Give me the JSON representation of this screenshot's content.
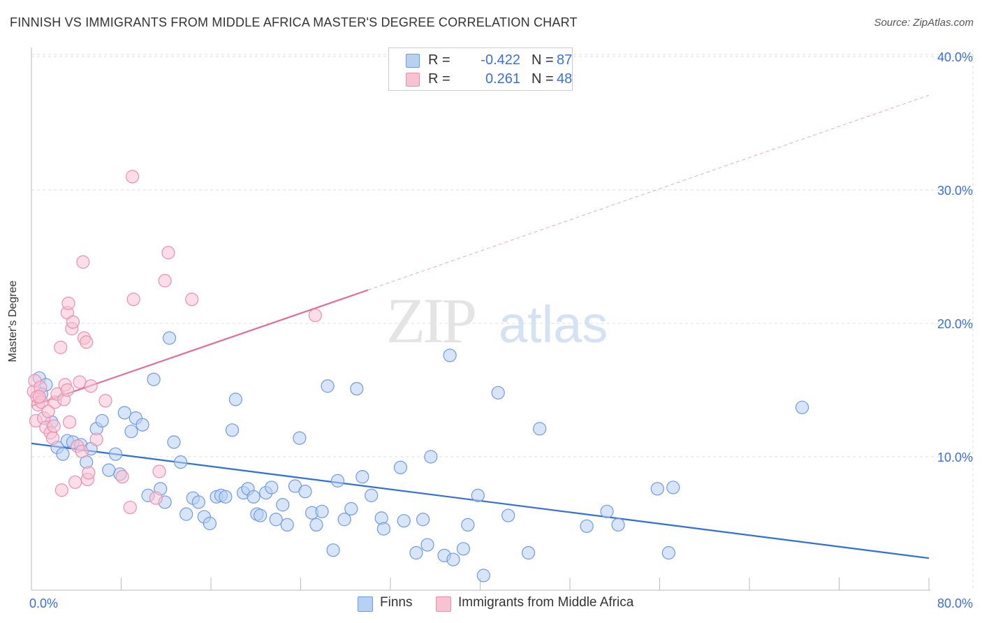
{
  "header": {
    "title": "FINNISH VS IMMIGRANTS FROM MIDDLE AFRICA MASTER'S DEGREE CORRELATION CHART",
    "source": "Source: ZipAtlas.com"
  },
  "watermark": {
    "zip": "ZIP",
    "atlas": "atlas"
  },
  "legend_top": {
    "rows": [
      {
        "r_label": "R =",
        "r_value": "-0.422",
        "n_label": "N =",
        "n_value": "87"
      },
      {
        "r_label": "R =",
        "r_value": "0.261",
        "n_label": "N =",
        "n_value": "48"
      }
    ]
  },
  "colors": {
    "finns_fill": "#b8d0f2",
    "finns_stroke": "#6f9be0",
    "finns_line": "#2f6fd6",
    "africa_fill": "#f7c3d3",
    "africa_stroke": "#ec8fae",
    "africa_line": "#e06f98",
    "axis_label": "#3a6fd8",
    "grid": "#dddddd"
  },
  "chart_data": {
    "type": "scatter",
    "title": "FINNISH VS IMMIGRANTS FROM MIDDLE AFRICA MASTER'S DEGREE CORRELATION CHART",
    "xlabel": "",
    "ylabel": "Master's Degree",
    "xlim": [
      0,
      80
    ],
    "ylim": [
      0,
      42
    ],
    "x_tick_labels": [
      "0.0%",
      "80.0%"
    ],
    "y_ticks": [
      10,
      20,
      30,
      40
    ],
    "y_tick_labels": [
      "10.0%",
      "20.0%",
      "30.0%",
      "40.0%"
    ],
    "grid": true,
    "legend_position": "top-center",
    "series": [
      {
        "name": "Finns",
        "r": -0.422,
        "n": 87,
        "trend": {
          "x": [
            0,
            80
          ],
          "y": [
            11.0,
            2.4
          ]
        },
        "points": [
          [
            0.7,
            15.9
          ],
          [
            1.3,
            15.4
          ],
          [
            0.9,
            14.7
          ],
          [
            1.8,
            12.6
          ],
          [
            2.3,
            10.7
          ],
          [
            2.8,
            10.2
          ],
          [
            3.2,
            11.2
          ],
          [
            3.7,
            11.1
          ],
          [
            4.4,
            10.9
          ],
          [
            4.9,
            9.6
          ],
          [
            5.3,
            10.6
          ],
          [
            5.8,
            12.1
          ],
          [
            6.3,
            12.7
          ],
          [
            6.9,
            9.0
          ],
          [
            7.5,
            10.2
          ],
          [
            7.9,
            8.7
          ],
          [
            8.3,
            13.3
          ],
          [
            8.9,
            11.9
          ],
          [
            9.3,
            12.9
          ],
          [
            9.9,
            12.4
          ],
          [
            10.4,
            7.1
          ],
          [
            10.9,
            15.8
          ],
          [
            11.5,
            7.6
          ],
          [
            11.9,
            6.6
          ],
          [
            12.3,
            18.9
          ],
          [
            12.7,
            11.1
          ],
          [
            13.3,
            9.6
          ],
          [
            13.8,
            5.7
          ],
          [
            14.4,
            6.9
          ],
          [
            14.9,
            6.6
          ],
          [
            15.4,
            5.5
          ],
          [
            15.9,
            5.0
          ],
          [
            16.5,
            7.0
          ],
          [
            16.9,
            7.1
          ],
          [
            17.3,
            7.0
          ],
          [
            17.9,
            12.0
          ],
          [
            18.2,
            14.3
          ],
          [
            18.9,
            7.3
          ],
          [
            19.3,
            7.6
          ],
          [
            19.8,
            7.0
          ],
          [
            20.1,
            5.7
          ],
          [
            20.4,
            5.6
          ],
          [
            20.9,
            7.3
          ],
          [
            21.4,
            7.7
          ],
          [
            21.8,
            5.3
          ],
          [
            22.4,
            6.4
          ],
          [
            22.8,
            4.9
          ],
          [
            23.5,
            7.8
          ],
          [
            23.9,
            11.4
          ],
          [
            24.4,
            7.4
          ],
          [
            25.0,
            5.8
          ],
          [
            25.4,
            4.9
          ],
          [
            25.9,
            5.9
          ],
          [
            26.4,
            15.3
          ],
          [
            26.9,
            3.0
          ],
          [
            27.3,
            8.2
          ],
          [
            27.9,
            5.3
          ],
          [
            28.5,
            6.1
          ],
          [
            29.0,
            15.1
          ],
          [
            29.5,
            8.5
          ],
          [
            30.3,
            7.1
          ],
          [
            31.2,
            5.4
          ],
          [
            31.4,
            4.6
          ],
          [
            32.9,
            9.2
          ],
          [
            33.2,
            5.2
          ],
          [
            34.3,
            2.8
          ],
          [
            34.9,
            5.3
          ],
          [
            35.3,
            3.4
          ],
          [
            35.6,
            10.0
          ],
          [
            36.8,
            2.6
          ],
          [
            37.6,
            2.3
          ],
          [
            37.3,
            17.6
          ],
          [
            38.5,
            3.1
          ],
          [
            38.9,
            4.9
          ],
          [
            39.8,
            7.1
          ],
          [
            40.3,
            1.1
          ],
          [
            41.6,
            14.8
          ],
          [
            42.5,
            5.6
          ],
          [
            44.3,
            2.8
          ],
          [
            45.3,
            12.1
          ],
          [
            49.5,
            4.8
          ],
          [
            51.3,
            5.9
          ],
          [
            52.3,
            4.9
          ],
          [
            55.8,
            7.6
          ],
          [
            56.8,
            2.8
          ],
          [
            57.2,
            7.7
          ],
          [
            68.7,
            13.7
          ]
        ]
      },
      {
        "name": "Immigrants from Middle Africa",
        "r": 0.261,
        "n": 48,
        "trend": {
          "x": [
            0,
            30
          ],
          "y": [
            13.8,
            22.5
          ],
          "extrapolated_to": [
            80,
            37.1
          ]
        },
        "points": [
          [
            0.2,
            14.9
          ],
          [
            0.3,
            15.7
          ],
          [
            0.4,
            12.7
          ],
          [
            0.5,
            14.5
          ],
          [
            0.6,
            13.9
          ],
          [
            0.8,
            15.2
          ],
          [
            0.9,
            14.1
          ],
          [
            1.1,
            12.9
          ],
          [
            1.3,
            12.2
          ],
          [
            1.5,
            13.4
          ],
          [
            1.7,
            11.8
          ],
          [
            1.9,
            11.4
          ],
          [
            2.0,
            12.3
          ],
          [
            2.1,
            14.1
          ],
          [
            2.3,
            14.7
          ],
          [
            2.6,
            18.2
          ],
          [
            2.7,
            7.5
          ],
          [
            2.9,
            14.3
          ],
          [
            3.0,
            15.4
          ],
          [
            3.2,
            15.0
          ],
          [
            3.2,
            20.8
          ],
          [
            3.3,
            21.5
          ],
          [
            3.4,
            12.6
          ],
          [
            3.6,
            19.6
          ],
          [
            3.7,
            20.1
          ],
          [
            3.9,
            8.1
          ],
          [
            4.1,
            10.8
          ],
          [
            4.3,
            15.6
          ],
          [
            4.5,
            10.4
          ],
          [
            4.6,
            24.6
          ],
          [
            4.7,
            18.9
          ],
          [
            4.9,
            18.6
          ],
          [
            5.0,
            8.3
          ],
          [
            5.1,
            8.8
          ],
          [
            5.3,
            15.3
          ],
          [
            5.8,
            11.3
          ],
          [
            6.6,
            14.2
          ],
          [
            8.1,
            8.5
          ],
          [
            8.8,
            6.2
          ],
          [
            9.1,
            21.8
          ],
          [
            9.0,
            31.0
          ],
          [
            11.1,
            6.9
          ],
          [
            11.4,
            8.9
          ],
          [
            11.9,
            23.2
          ],
          [
            12.2,
            25.3
          ],
          [
            14.3,
            21.8
          ],
          [
            25.3,
            20.6
          ],
          [
            0.7,
            14.5
          ]
        ]
      }
    ]
  },
  "legend_bottom": {
    "items": [
      "Finns",
      "Immigrants from Middle Africa"
    ]
  }
}
